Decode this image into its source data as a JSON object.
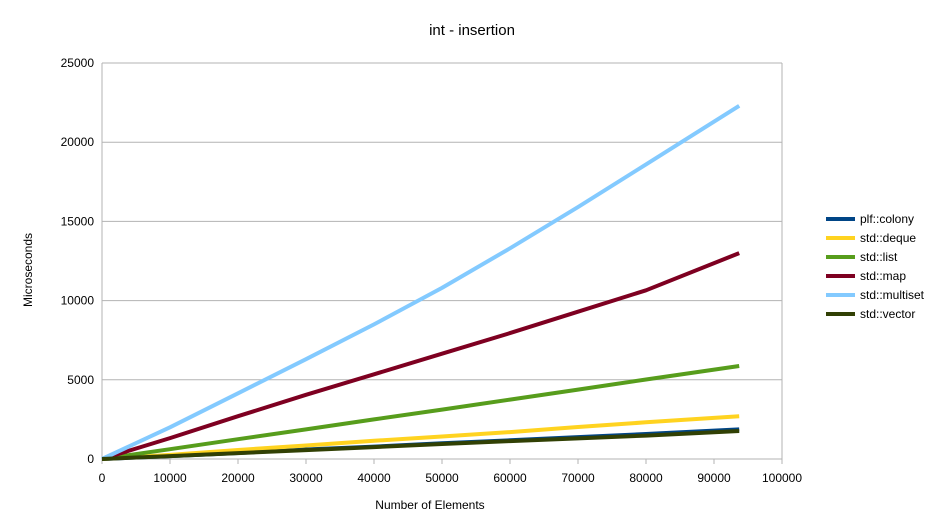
{
  "chart_data": {
    "type": "line",
    "title": "int - insertion",
    "xlabel": "Number of Elements",
    "ylabel": "Microseconds",
    "xlim": [
      0,
      100000
    ],
    "ylim": [
      0,
      25000
    ],
    "xticks": [
      0,
      10000,
      20000,
      30000,
      40000,
      50000,
      60000,
      70000,
      80000,
      90000,
      100000
    ],
    "yticks": [
      0,
      5000,
      10000,
      15000,
      20000,
      25000
    ],
    "grid": "horizontal",
    "legend_position": "right",
    "series": [
      {
        "name": "plf::colony",
        "color": "#004586",
        "x": [
          0,
          10000,
          20000,
          30000,
          40000,
          50000,
          60000,
          70000,
          80000,
          93700
        ],
        "y": [
          0,
          180,
          380,
          600,
          780,
          1000,
          1180,
          1380,
          1580,
          1870
        ]
      },
      {
        "name": "std::deque",
        "color": "#ffd320",
        "x": [
          0,
          10000,
          20000,
          30000,
          40000,
          50000,
          60000,
          70000,
          80000,
          93700
        ],
        "y": [
          0,
          260,
          570,
          850,
          1150,
          1420,
          1700,
          2020,
          2320,
          2700
        ]
      },
      {
        "name": "std::list",
        "color": "#579d1c",
        "x": [
          0,
          10000,
          20000,
          30000,
          40000,
          50000,
          60000,
          70000,
          80000,
          93700
        ],
        "y": [
          0,
          620,
          1250,
          1870,
          2500,
          3120,
          3750,
          4380,
          5020,
          5870
        ]
      },
      {
        "name": "std::map",
        "color": "#7e0021",
        "x": [
          0,
          10000,
          20000,
          30000,
          40000,
          50000,
          60000,
          70000,
          80000,
          93700
        ],
        "y": [
          0,
          1320,
          2700,
          4050,
          5350,
          6650,
          7950,
          9300,
          10650,
          13000
        ]
      },
      {
        "name": "std::multiset",
        "color": "#83caff",
        "x": [
          0,
          10000,
          20000,
          30000,
          40000,
          50000,
          60000,
          70000,
          80000,
          93700
        ],
        "y": [
          0,
          2000,
          4150,
          6300,
          8500,
          10800,
          13300,
          15900,
          18600,
          22300
        ]
      },
      {
        "name": "std::vector",
        "color": "#314004",
        "x": [
          0,
          10000,
          20000,
          30000,
          40000,
          50000,
          60000,
          70000,
          80000,
          93700
        ],
        "y": [
          0,
          180,
          370,
          560,
          750,
          950,
          1130,
          1300,
          1480,
          1770
        ]
      }
    ]
  }
}
